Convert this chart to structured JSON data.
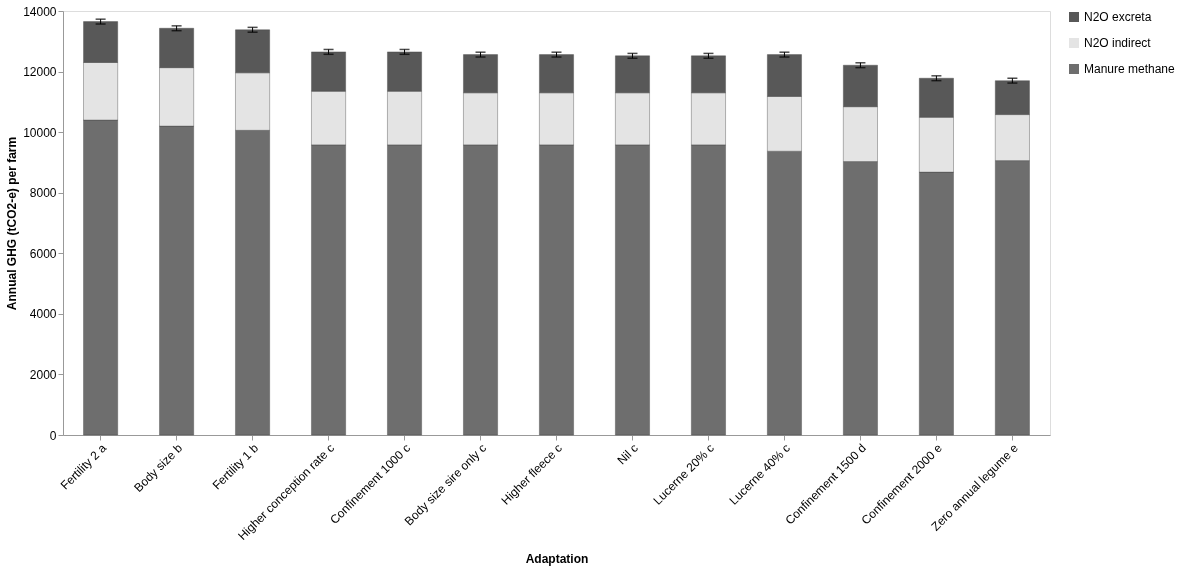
{
  "chart_data": {
    "type": "bar",
    "stacked": true,
    "xlabel": "Adaptation",
    "ylabel": "Annual GHG  (tCO2-e) per farm",
    "categories": [
      "Fertility 2 a",
      "Body size b",
      "Fertility 1 b",
      "Higher conception rate c",
      "Confinement 1000 c",
      "Body size sire only c",
      "Higher fleece c",
      "Nil c",
      "Lucerne 20% c",
      "Lucerne 40% c",
      "Confinement 1500 d",
      "Confinement 2000 e",
      "Zero annual legume e"
    ],
    "series": [
      {
        "name": "Manure methane",
        "color": "#6e6e6e",
        "values": [
          10400,
          10200,
          10060,
          9580,
          9580,
          9580,
          9580,
          9580,
          9580,
          9370,
          9030,
          8680,
          9060
        ]
      },
      {
        "name": "N2O indirect",
        "color": "#e4e4e4",
        "values": [
          1900,
          1930,
          1900,
          1770,
          1770,
          1720,
          1720,
          1720,
          1720,
          1810,
          1810,
          1810,
          1520
        ]
      },
      {
        "name": "N2O excreta",
        "color": "#585858",
        "values": [
          1350,
          1300,
          1420,
          1300,
          1300,
          1260,
          1260,
          1220,
          1220,
          1380,
          1370,
          1290,
          1120
        ],
        "errors": [
          80,
          80,
          80,
          80,
          80,
          80,
          80,
          80,
          80,
          80,
          80,
          80,
          80
        ]
      }
    ],
    "ylim": [
      0,
      14000
    ],
    "yticks": [
      0,
      2000,
      4000,
      6000,
      8000,
      10000,
      12000,
      14000
    ],
    "grid": false,
    "legend": "right"
  }
}
